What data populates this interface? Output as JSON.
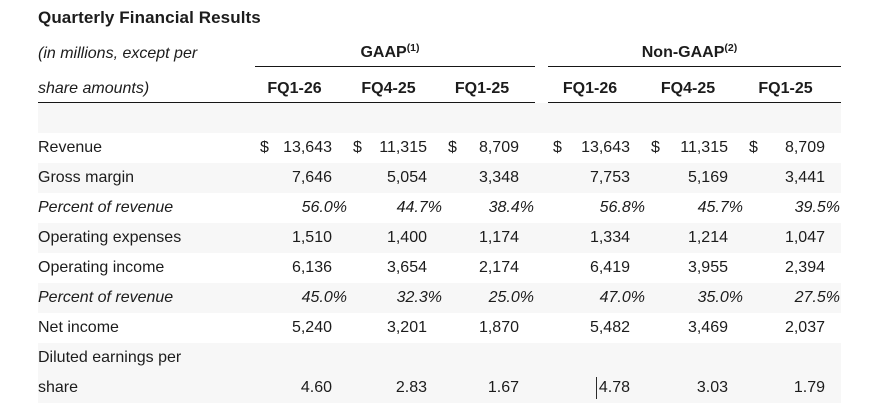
{
  "page": {
    "title": "Quarterly Financial Results"
  },
  "table": {
    "units_note": {
      "line1": "(in millions, except per",
      "line2": "share amounts)"
    },
    "dollar_sign": "$",
    "groups": [
      {
        "name": "GAAP",
        "superscript": "(1)",
        "columns": [
          "FQ1-26",
          "FQ4-25",
          "FQ1-25"
        ]
      },
      {
        "name": "Non-GAAP",
        "superscript": "(2)",
        "columns": [
          "FQ1-26",
          "FQ4-25",
          "FQ1-25"
        ]
      }
    ],
    "rows": [
      {
        "label": "Revenue",
        "currency": true,
        "gaap": [
          "13,643",
          "11,315",
          "8,709"
        ],
        "non_gaap": [
          "13,643",
          "11,315",
          "8,709"
        ]
      },
      {
        "label": "Gross margin",
        "gaap": [
          "7,646",
          "5,054",
          "3,348"
        ],
        "non_gaap": [
          "7,753",
          "5,169",
          "3,441"
        ]
      },
      {
        "label": "Percent of revenue",
        "emphasis": "italic",
        "gaap": [
          "56.0%",
          "44.7%",
          "38.4%"
        ],
        "non_gaap": [
          "56.8%",
          "45.7%",
          "39.5%"
        ]
      },
      {
        "label": "Operating expenses",
        "gaap": [
          "1,510",
          "1,400",
          "1,174"
        ],
        "non_gaap": [
          "1,334",
          "1,214",
          "1,047"
        ]
      },
      {
        "label": "Operating income",
        "gaap": [
          "6,136",
          "3,654",
          "2,174"
        ],
        "non_gaap": [
          "6,419",
          "3,955",
          "2,394"
        ]
      },
      {
        "label": "Percent of revenue",
        "emphasis": "italic",
        "gaap": [
          "45.0%",
          "32.3%",
          "25.0%"
        ],
        "non_gaap": [
          "47.0%",
          "35.0%",
          "27.5%"
        ]
      },
      {
        "label": "Net income",
        "gaap": [
          "5,240",
          "3,201",
          "1,870"
        ],
        "non_gaap": [
          "5,482",
          "3,469",
          "2,037"
        ]
      },
      {
        "label": "Diluted earnings per share",
        "label_line1": "Diluted earnings per",
        "label_line2": "share",
        "gaap": [
          "4.60",
          "2.83",
          "1.67"
        ],
        "non_gaap": [
          "4.78",
          "3.03",
          "1.79"
        ]
      }
    ],
    "caret": {
      "visible": true,
      "before_value": "4.78"
    },
    "colors": {
      "stripe": "#f7f7f7",
      "text": "#1c1c1c",
      "rule": "#161616",
      "background": "#ffffff"
    }
  }
}
